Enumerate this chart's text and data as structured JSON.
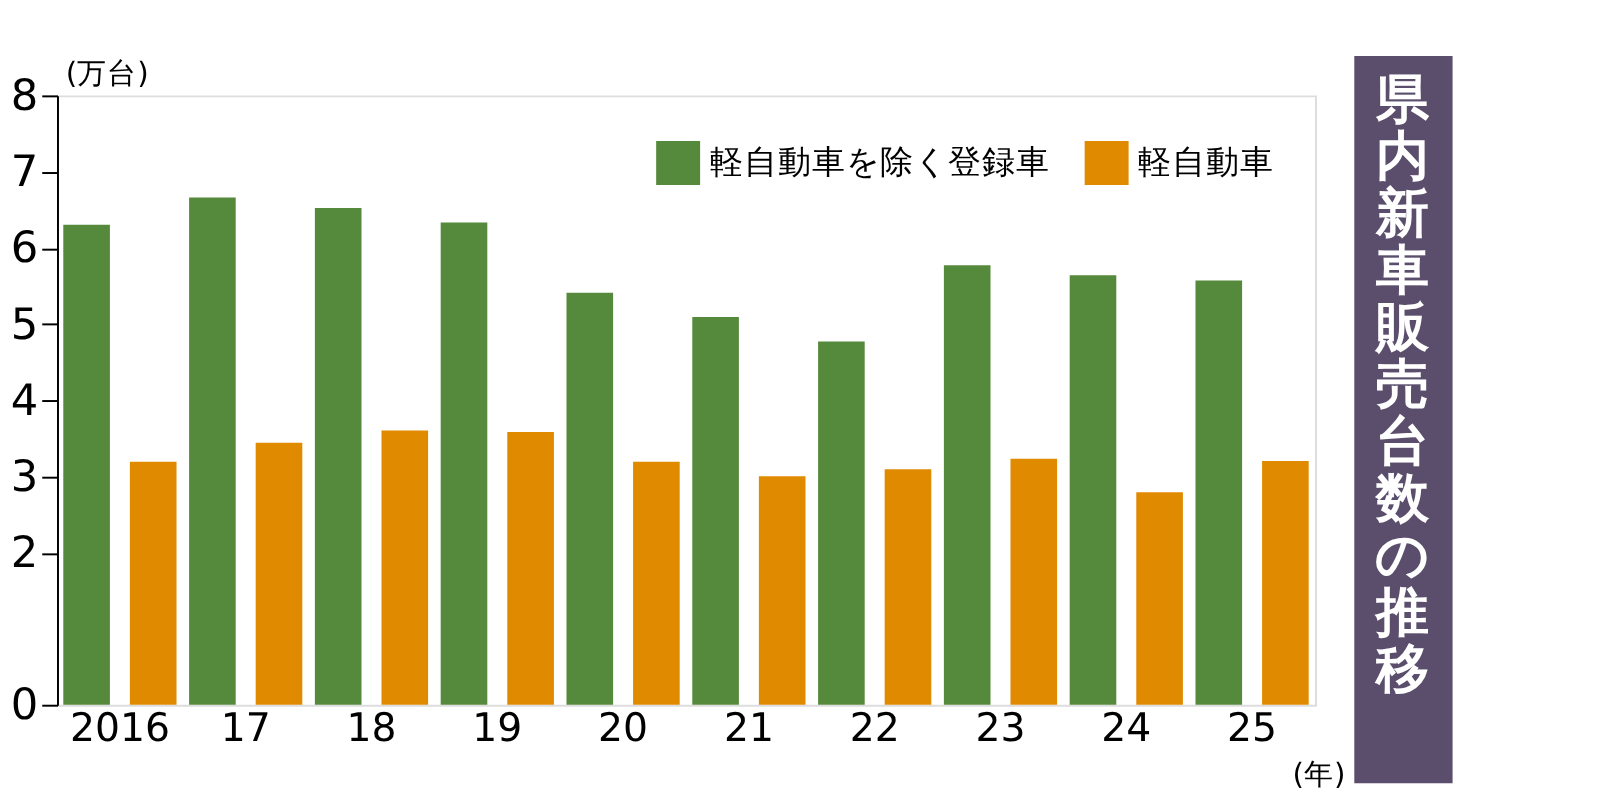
{
  "chart_data": {
    "type": "bar",
    "title": "県内新車販売台数の推移",
    "ylabel": "(万台)",
    "xlabel": "(年)",
    "categories": [
      "2016",
      "17",
      "18",
      "19",
      "20",
      "21",
      "22",
      "23",
      "24",
      "25"
    ],
    "series": [
      {
        "name": "軽自動車を除く登録車",
        "color": "#558a3c",
        "values": [
          6.3,
          6.66,
          6.52,
          6.33,
          5.41,
          5.09,
          4.77,
          5.77,
          5.64,
          5.57
        ]
      },
      {
        "name": "軽自動車",
        "color": "#e08a00",
        "values": [
          3.19,
          3.44,
          3.6,
          3.58,
          3.19,
          3.0,
          3.09,
          3.23,
          2.79,
          3.2
        ]
      }
    ],
    "ylim": [
      0,
      8
    ],
    "yticks": [
      0,
      2,
      3,
      4,
      5,
      6,
      7,
      8
    ],
    "grid": false,
    "legend": "top right"
  }
}
